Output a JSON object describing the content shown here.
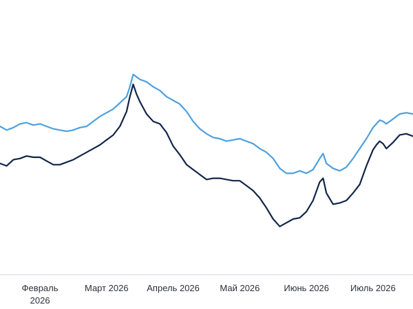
{
  "chart_data": {
    "type": "line",
    "title": "",
    "xlabel": "",
    "ylabel": "",
    "grid": false,
    "legend": "none",
    "x_ticks": [
      {
        "x": 0.0,
        "label": "Февраль",
        "label2": "2026"
      },
      {
        "x": 1.0,
        "label": "Март 2026"
      },
      {
        "x": 2.0,
        "label": "Апрель 2026"
      },
      {
        "x": 3.0,
        "label": "Май 2026"
      },
      {
        "x": 4.0,
        "label": "Июнь 2026"
      },
      {
        "x": 5.0,
        "label": "Июль 2026"
      }
    ],
    "xlim": [
      -0.6,
      5.6
    ],
    "ylim": [
      0,
      100
    ],
    "series": [
      {
        "color": "#4b9fe0",
        "points": [
          [
            -0.6,
            60.0
          ],
          [
            -0.5,
            58.5
          ],
          [
            -0.4,
            59.5
          ],
          [
            -0.3,
            61.0
          ],
          [
            -0.2,
            61.5
          ],
          [
            -0.1,
            60.5
          ],
          [
            0.0,
            61.0
          ],
          [
            0.1,
            60.0
          ],
          [
            0.2,
            59.0
          ],
          [
            0.3,
            58.5
          ],
          [
            0.4,
            58.0
          ],
          [
            0.5,
            58.5
          ],
          [
            0.6,
            59.5
          ],
          [
            0.7,
            60.0
          ],
          [
            0.8,
            62.0
          ],
          [
            0.9,
            64.0
          ],
          [
            1.0,
            65.5
          ],
          [
            1.1,
            67.0
          ],
          [
            1.2,
            69.5
          ],
          [
            1.3,
            72.0
          ],
          [
            1.35,
            76.0
          ],
          [
            1.4,
            81.0
          ],
          [
            1.45,
            80.0
          ],
          [
            1.5,
            79.0
          ],
          [
            1.6,
            78.0
          ],
          [
            1.7,
            76.0
          ],
          [
            1.8,
            74.5
          ],
          [
            1.9,
            72.0
          ],
          [
            2.0,
            70.5
          ],
          [
            2.1,
            69.0
          ],
          [
            2.2,
            66.0
          ],
          [
            2.3,
            62.0
          ],
          [
            2.4,
            59.0
          ],
          [
            2.5,
            57.0
          ],
          [
            2.6,
            55.5
          ],
          [
            2.7,
            55.0
          ],
          [
            2.8,
            54.0
          ],
          [
            2.9,
            54.5
          ],
          [
            3.0,
            55.0
          ],
          [
            3.1,
            54.0
          ],
          [
            3.2,
            53.0
          ],
          [
            3.3,
            51.0
          ],
          [
            3.4,
            49.5
          ],
          [
            3.5,
            47.0
          ],
          [
            3.6,
            43.0
          ],
          [
            3.7,
            41.0
          ],
          [
            3.8,
            41.0
          ],
          [
            3.9,
            42.0
          ],
          [
            4.0,
            41.0
          ],
          [
            4.1,
            42.5
          ],
          [
            4.2,
            47.0
          ],
          [
            4.25,
            49.0
          ],
          [
            4.3,
            45.0
          ],
          [
            4.4,
            43.0
          ],
          [
            4.5,
            42.0
          ],
          [
            4.6,
            43.5
          ],
          [
            4.7,
            47.0
          ],
          [
            4.8,
            51.0
          ],
          [
            4.9,
            55.0
          ],
          [
            5.0,
            59.5
          ],
          [
            5.05,
            61.0
          ],
          [
            5.1,
            62.5
          ],
          [
            5.15,
            62.0
          ],
          [
            5.2,
            61.0
          ],
          [
            5.3,
            63.0
          ],
          [
            5.4,
            65.0
          ],
          [
            5.5,
            65.5
          ],
          [
            5.6,
            65.0
          ]
        ]
      },
      {
        "color": "#102548",
        "points": [
          [
            -0.6,
            45.0
          ],
          [
            -0.5,
            44.0
          ],
          [
            -0.4,
            46.5
          ],
          [
            -0.3,
            47.0
          ],
          [
            -0.2,
            48.0
          ],
          [
            -0.1,
            47.5
          ],
          [
            0.0,
            47.5
          ],
          [
            0.1,
            46.0
          ],
          [
            0.2,
            44.5
          ],
          [
            0.3,
            44.5
          ],
          [
            0.4,
            45.5
          ],
          [
            0.5,
            46.5
          ],
          [
            0.6,
            48.0
          ],
          [
            0.7,
            49.5
          ],
          [
            0.8,
            51.0
          ],
          [
            0.9,
            52.5
          ],
          [
            1.0,
            54.5
          ],
          [
            1.1,
            56.5
          ],
          [
            1.2,
            60.0
          ],
          [
            1.3,
            66.0
          ],
          [
            1.35,
            72.0
          ],
          [
            1.4,
            77.0
          ],
          [
            1.45,
            73.0
          ],
          [
            1.5,
            70.0
          ],
          [
            1.6,
            65.0
          ],
          [
            1.7,
            62.0
          ],
          [
            1.8,
            61.0
          ],
          [
            1.9,
            57.5
          ],
          [
            2.0,
            52.0
          ],
          [
            2.1,
            48.5
          ],
          [
            2.2,
            44.5
          ],
          [
            2.3,
            42.5
          ],
          [
            2.4,
            40.5
          ],
          [
            2.5,
            38.5
          ],
          [
            2.6,
            39.0
          ],
          [
            2.7,
            39.0
          ],
          [
            2.8,
            38.5
          ],
          [
            2.9,
            38.0
          ],
          [
            3.0,
            38.0
          ],
          [
            3.1,
            36.0
          ],
          [
            3.2,
            34.0
          ],
          [
            3.3,
            31.0
          ],
          [
            3.4,
            27.0
          ],
          [
            3.5,
            22.5
          ],
          [
            3.6,
            19.5
          ],
          [
            3.7,
            21.0
          ],
          [
            3.8,
            22.5
          ],
          [
            3.9,
            23.0
          ],
          [
            4.0,
            25.5
          ],
          [
            4.1,
            30.0
          ],
          [
            4.2,
            37.5
          ],
          [
            4.25,
            39.0
          ],
          [
            4.3,
            33.0
          ],
          [
            4.4,
            28.5
          ],
          [
            4.5,
            29.0
          ],
          [
            4.6,
            30.0
          ],
          [
            4.7,
            33.0
          ],
          [
            4.8,
            36.5
          ],
          [
            4.9,
            44.0
          ],
          [
            5.0,
            50.5
          ],
          [
            5.05,
            52.5
          ],
          [
            5.1,
            54.0
          ],
          [
            5.15,
            53.0
          ],
          [
            5.2,
            51.0
          ],
          [
            5.3,
            53.5
          ],
          [
            5.4,
            56.5
          ],
          [
            5.5,
            57.0
          ],
          [
            5.6,
            56.0
          ]
        ]
      }
    ]
  }
}
